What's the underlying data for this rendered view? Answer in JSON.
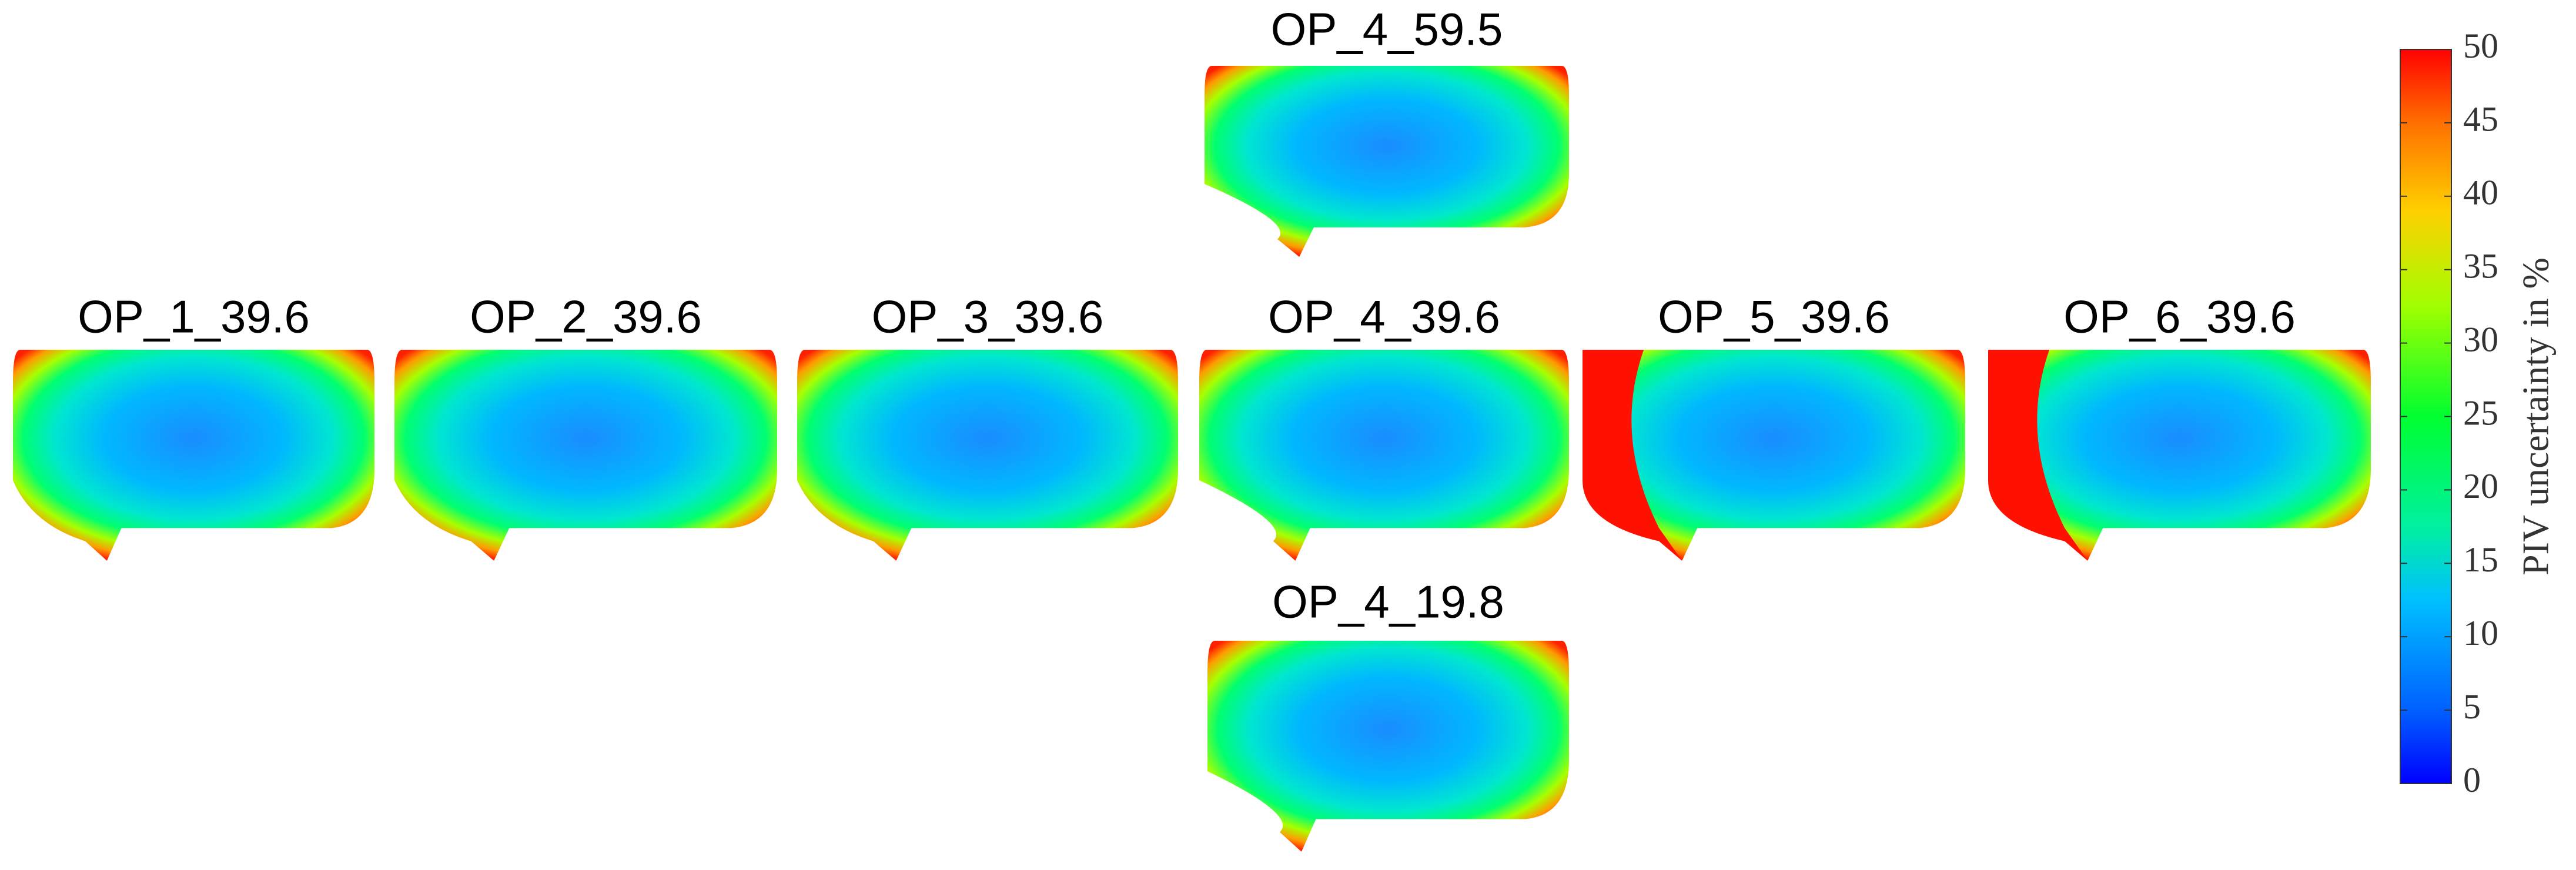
{
  "panels": [
    {
      "title": "OP_4_59.5"
    },
    {
      "title": "OP_1_39.6"
    },
    {
      "title": "OP_2_39.6"
    },
    {
      "title": "OP_3_39.6"
    },
    {
      "title": "OP_4_39.6"
    },
    {
      "title": "OP_5_39.6"
    },
    {
      "title": "OP_6_39.6"
    },
    {
      "title": "OP_4_19.8"
    }
  ],
  "colorbar": {
    "label": "PIV uncertainty in %",
    "lim": [
      0,
      50
    ],
    "ticks": [
      0,
      5,
      10,
      15,
      20,
      25,
      30,
      35,
      40,
      45,
      50
    ]
  }
}
